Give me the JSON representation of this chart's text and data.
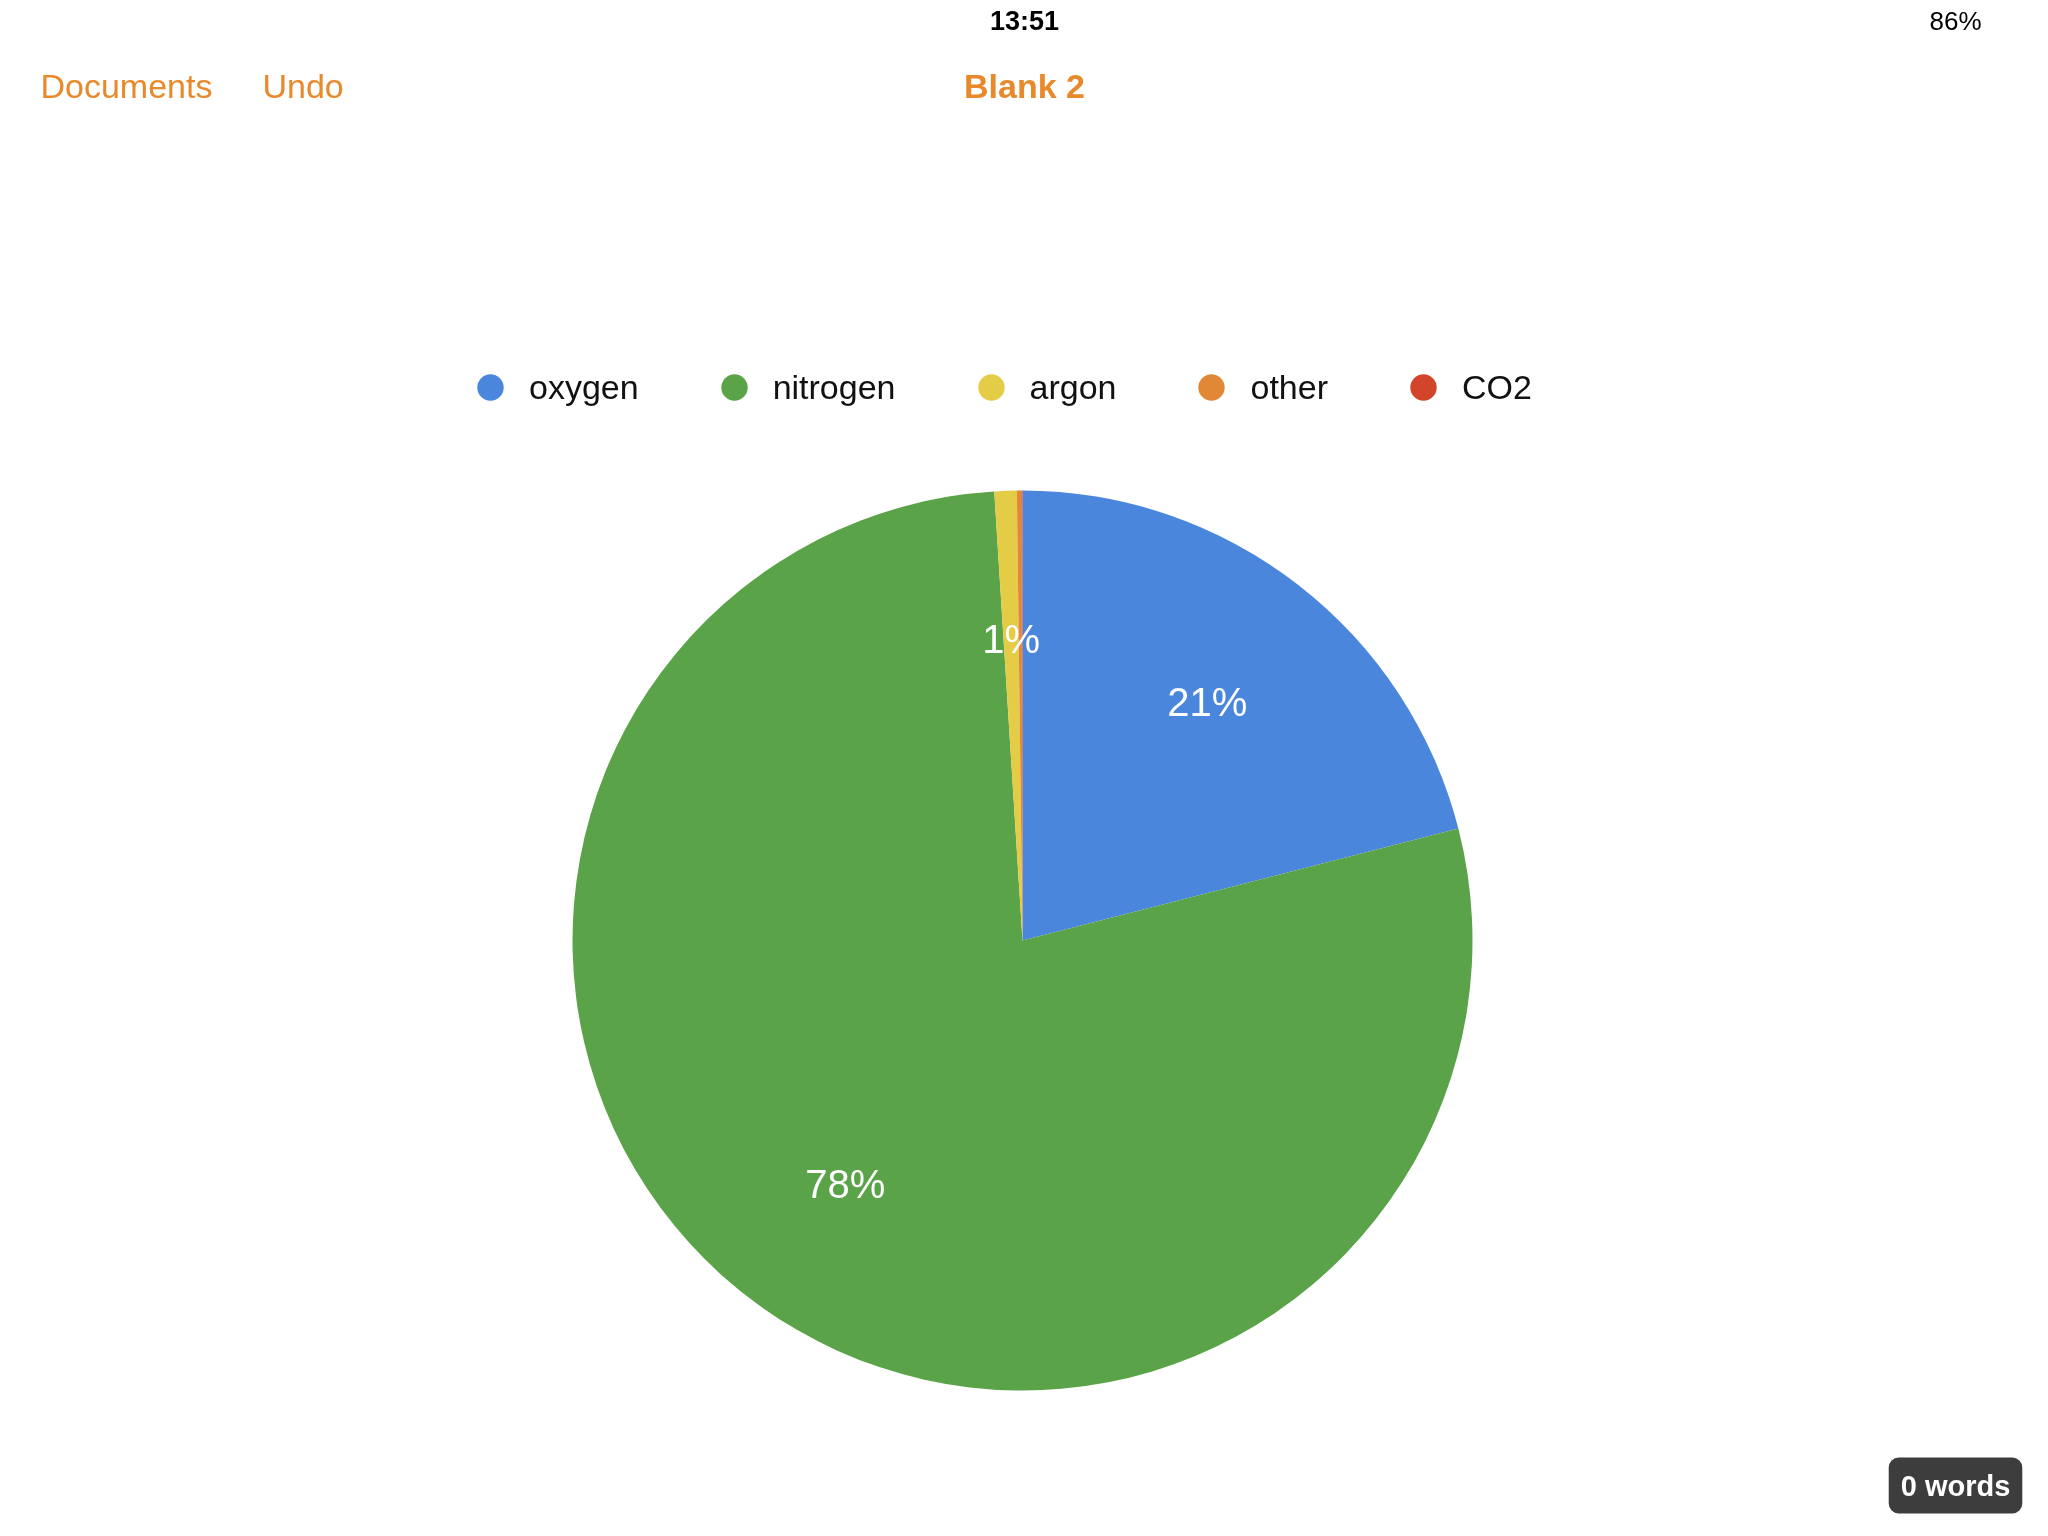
{
  "chart_data": {
    "type": "pie",
    "title": "Blank 2",
    "categories": [
      "oxygen",
      "nitrogen",
      "argon",
      "other",
      "CO2"
    ],
    "values": [
      21,
      78,
      0.8,
      0.16,
      0.04
    ],
    "colors": [
      "#4a87dc",
      "#5ba348",
      "#e4cc46",
      "#e08836",
      "#d2452b"
    ],
    "value_labels": [
      "21%",
      "78%",
      "1%",
      null,
      null
    ],
    "legend": "top",
    "annotations": [
      "Documents",
      "Undo",
      "13:51",
      "86%",
      "0 words"
    ]
  }
}
